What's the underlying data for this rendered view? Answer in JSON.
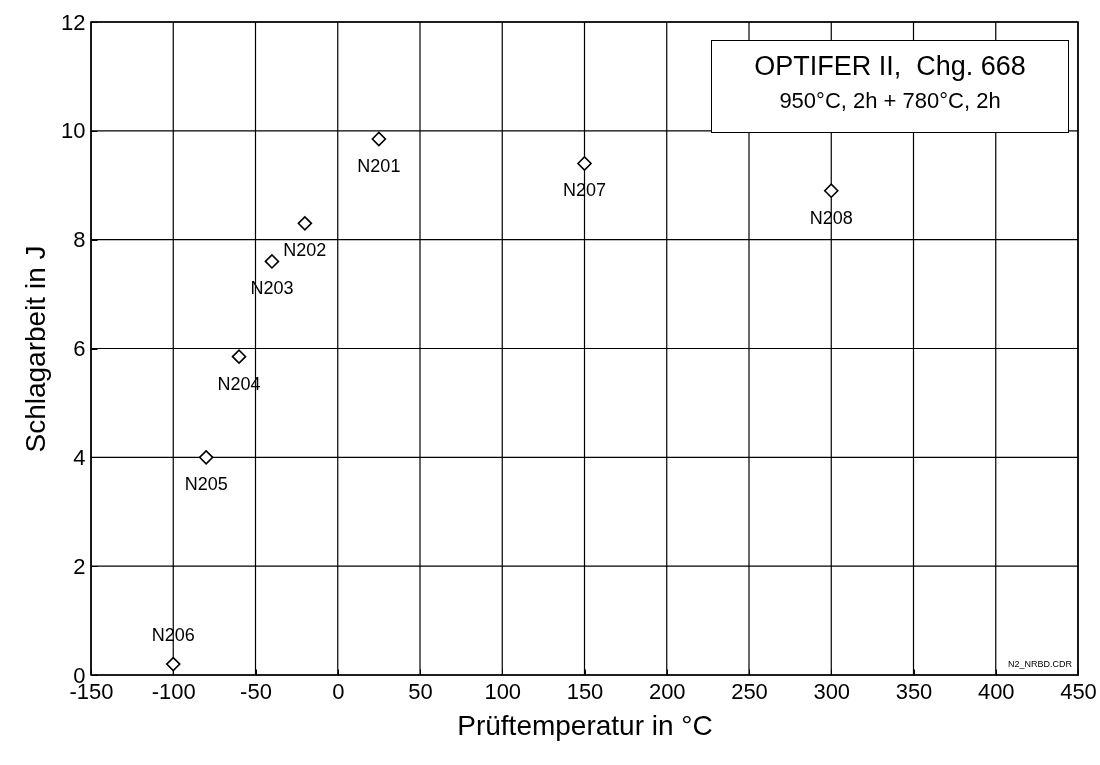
{
  "chart_data": {
    "type": "scatter",
    "title": "OPTIFER II,  Chg. 668",
    "subtitle": "950°C, 2h + 780°C, 2h",
    "xlabel": "Prüftemperatur in °C",
    "ylabel": "Schlagarbeit in J",
    "x": [
      25,
      -20,
      -40,
      -60,
      -80,
      -100,
      150,
      300
    ],
    "series": [
      {
        "color": "#000000",
        "values": [
          9.85,
          8.3,
          7.6,
          5.85,
          4.0,
          0.2,
          9.4,
          8.9
        ]
      }
    ],
    "marker": "diamond",
    "grid": true,
    "xlim": [
      -150,
      450
    ],
    "ylim": [
      0,
      12
    ],
    "xticks": [
      -150,
      -100,
      -50,
      0,
      50,
      100,
      150,
      200,
      250,
      300,
      350,
      400,
      450
    ],
    "yticks": [
      0,
      2,
      4,
      6,
      8,
      10,
      12
    ],
    "annotations": [
      {
        "text": "N201",
        "x": 25,
        "y": 9.85
      },
      {
        "text": "N202",
        "x": -20,
        "y": 8.3
      },
      {
        "text": "N203",
        "x": -40,
        "y": 7.6
      },
      {
        "text": "N204",
        "x": -60,
        "y": 5.85
      },
      {
        "text": "N205",
        "x": -80,
        "y": 4.0
      },
      {
        "text": "N206",
        "x": -100,
        "y": 0.2
      },
      {
        "text": "N207",
        "x": 150,
        "y": 9.4
      },
      {
        "text": "N208",
        "x": 300,
        "y": 8.9
      },
      "N2_NRBD.CDR"
    ]
  }
}
